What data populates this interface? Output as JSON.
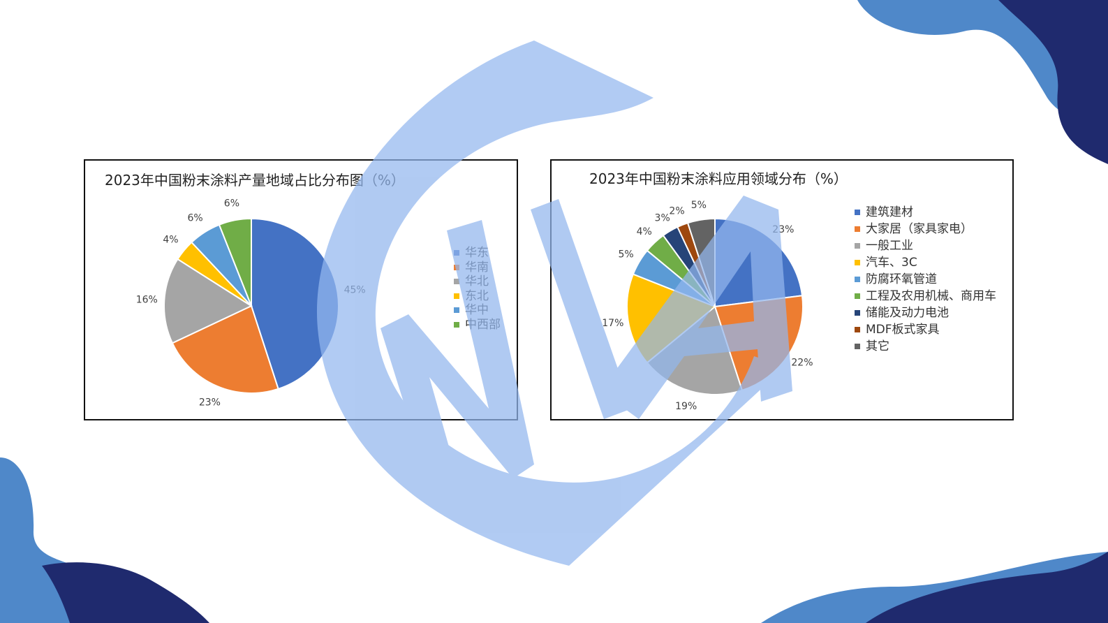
{
  "colors": {
    "bg_dark": "#1f2a6e",
    "bg_light": "#4f88c9",
    "watermark": "#93b7ee"
  },
  "chart_data": [
    {
      "type": "pie",
      "title": "2023年中国粉末涂料产量地域占比分布图（%）",
      "categories": [
        "华东",
        "华南",
        "华北",
        "东北",
        "华中",
        "中西部"
      ],
      "values": [
        45,
        23,
        16,
        4,
        6,
        6
      ],
      "labels": [
        "45%",
        "23%",
        "16%",
        "4%",
        "6%",
        "6%"
      ],
      "colors": [
        "#4472c4",
        "#ed7d31",
        "#a5a5a5",
        "#ffc000",
        "#5b9bd5",
        "#70ad47"
      ],
      "legend": "right"
    },
    {
      "type": "pie",
      "title": "2023年中国粉末涂料应用领域分布（%）",
      "categories": [
        "建筑建材",
        "大家居（家具家电）",
        "一般工业",
        "汽车、3C",
        "防腐环氧管道",
        "工程及农用机械、商用车",
        "储能及动力电池",
        "MDF板式家具",
        "其它"
      ],
      "values": [
        23,
        22,
        19,
        17,
        5,
        4,
        3,
        2,
        5
      ],
      "labels": [
        "23%",
        "22%",
        "19%",
        "17%",
        "5%",
        "4%",
        "3%",
        "2%",
        "5%"
      ],
      "colors": [
        "#4472c4",
        "#ed7d31",
        "#a5a5a5",
        "#ffc000",
        "#5b9bd5",
        "#70ad47",
        "#264478",
        "#9e480e",
        "#636363"
      ],
      "legend": "right"
    }
  ]
}
